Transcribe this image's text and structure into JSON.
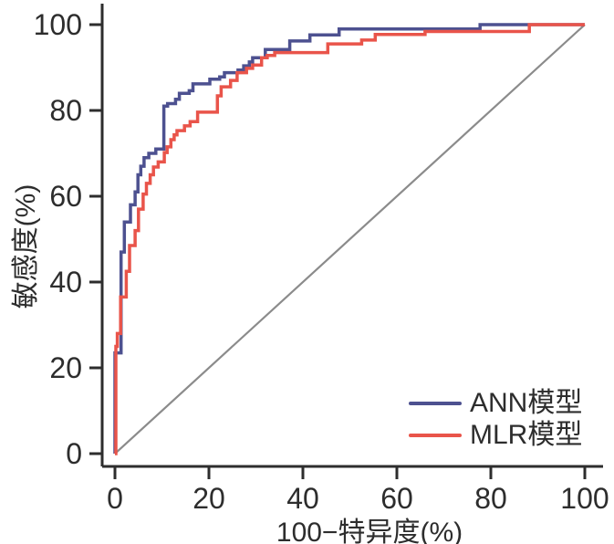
{
  "chart_data": {
    "type": "line",
    "subtype": "roc-step-curves",
    "title": "",
    "xlabel": "100−特异度(%)",
    "ylabel": "敏感度(%)",
    "xlim": [
      0,
      100
    ],
    "ylim": [
      0,
      100
    ],
    "x_ticks": [
      0,
      20,
      40,
      60,
      80,
      100
    ],
    "y_ticks": [
      0,
      20,
      40,
      60,
      80,
      100
    ],
    "grid": false,
    "legend_position": "bottom-right",
    "axis_color": "#2d2d2d",
    "series": [
      {
        "name": "ANN模型",
        "color": "#4d5190",
        "line_width": 3.5,
        "style": "step",
        "in_legend": true,
        "points": [
          [
            0,
            0
          ],
          [
            0,
            23.5
          ],
          [
            1.3,
            23.5
          ],
          [
            1.3,
            47
          ],
          [
            2,
            47
          ],
          [
            2,
            54
          ],
          [
            3.3,
            54
          ],
          [
            3.3,
            58
          ],
          [
            4.3,
            58
          ],
          [
            4.3,
            61
          ],
          [
            4.9,
            61
          ],
          [
            4.9,
            65
          ],
          [
            5.5,
            65
          ],
          [
            5.5,
            67
          ],
          [
            6.2,
            67
          ],
          [
            6.2,
            69
          ],
          [
            7.2,
            69
          ],
          [
            7.2,
            70
          ],
          [
            8.7,
            70
          ],
          [
            8.7,
            71
          ],
          [
            10.4,
            71
          ],
          [
            10.4,
            81
          ],
          [
            11.2,
            81
          ],
          [
            11.2,
            81.6
          ],
          [
            12.9,
            81.6
          ],
          [
            12.9,
            82.6
          ],
          [
            13.7,
            82.6
          ],
          [
            13.7,
            84
          ],
          [
            15.8,
            84
          ],
          [
            15.8,
            84.6
          ],
          [
            16.6,
            84.6
          ],
          [
            16.6,
            86.2
          ],
          [
            20.2,
            86.2
          ],
          [
            20.2,
            87.3
          ],
          [
            22.3,
            87.3
          ],
          [
            22.3,
            87.8
          ],
          [
            23.3,
            87.8
          ],
          [
            23.3,
            88.8
          ],
          [
            26.2,
            88.8
          ],
          [
            26.2,
            89.4
          ],
          [
            27.4,
            89.4
          ],
          [
            27.4,
            90.4
          ],
          [
            28.6,
            90.4
          ],
          [
            28.6,
            91.3
          ],
          [
            29.3,
            91.3
          ],
          [
            29.3,
            92.3
          ],
          [
            32,
            92.3
          ],
          [
            32,
            94.2
          ],
          [
            37.2,
            94.2
          ],
          [
            37.2,
            96.2
          ],
          [
            41.5,
            96.2
          ],
          [
            41.5,
            97.6
          ],
          [
            47.7,
            97.6
          ],
          [
            47.7,
            99
          ],
          [
            77.7,
            99
          ],
          [
            77.7,
            100
          ],
          [
            100,
            100
          ]
        ]
      },
      {
        "name": "MLR模型",
        "color": "#e9544a",
        "line_width": 3.5,
        "style": "step",
        "in_legend": true,
        "points": [
          [
            0,
            0
          ],
          [
            0.2,
            0
          ],
          [
            0.2,
            25
          ],
          [
            0.5,
            25
          ],
          [
            0.5,
            28
          ],
          [
            1.2,
            28
          ],
          [
            1.2,
            36.5
          ],
          [
            2.4,
            36.5
          ],
          [
            2.4,
            42.5
          ],
          [
            3.1,
            42.5
          ],
          [
            3.1,
            48.5
          ],
          [
            4.3,
            48.5
          ],
          [
            4.3,
            52
          ],
          [
            5,
            52
          ],
          [
            5,
            57
          ],
          [
            6,
            57
          ],
          [
            6,
            60.5
          ],
          [
            6.7,
            60.5
          ],
          [
            6.7,
            63
          ],
          [
            7.5,
            63
          ],
          [
            7.5,
            65
          ],
          [
            8.2,
            65
          ],
          [
            8.2,
            66.8
          ],
          [
            9.2,
            66.8
          ],
          [
            9.2,
            68
          ],
          [
            10.5,
            68
          ],
          [
            10.5,
            70.2
          ],
          [
            11.1,
            70.2
          ],
          [
            11.1,
            71.5
          ],
          [
            11.9,
            71.5
          ],
          [
            11.9,
            73.2
          ],
          [
            12.6,
            73.2
          ],
          [
            12.6,
            74.3
          ],
          [
            13.2,
            74.3
          ],
          [
            13.2,
            75.3
          ],
          [
            14.8,
            75.3
          ],
          [
            14.8,
            76.4
          ],
          [
            16,
            76.4
          ],
          [
            16,
            77.4
          ],
          [
            17.6,
            77.4
          ],
          [
            17.6,
            79.6
          ],
          [
            21.8,
            79.6
          ],
          [
            21.8,
            83.4
          ],
          [
            22.6,
            83.4
          ],
          [
            22.6,
            85.5
          ],
          [
            24.6,
            85.5
          ],
          [
            24.6,
            87
          ],
          [
            26,
            87
          ],
          [
            26,
            88.8
          ],
          [
            28,
            88.8
          ],
          [
            28,
            89.8
          ],
          [
            29.3,
            89.8
          ],
          [
            29.3,
            90.6
          ],
          [
            31.2,
            90.6
          ],
          [
            31.2,
            92.3
          ],
          [
            32.4,
            92.3
          ],
          [
            32.4,
            92.8
          ],
          [
            34,
            92.8
          ],
          [
            34,
            93.5
          ],
          [
            45.3,
            93.5
          ],
          [
            45.3,
            95.5
          ],
          [
            52.5,
            95.5
          ],
          [
            52.5,
            96.4
          ],
          [
            55.4,
            96.4
          ],
          [
            55.4,
            97.7
          ],
          [
            66,
            97.7
          ],
          [
            66,
            98.4
          ],
          [
            88.2,
            98.4
          ],
          [
            88.2,
            100
          ],
          [
            100,
            100
          ]
        ]
      },
      {
        "name": "chance-diagonal",
        "color": "#8b8b8b",
        "line_width": 2.2,
        "style": "straight",
        "in_legend": false,
        "points": [
          [
            0,
            0
          ],
          [
            100,
            100
          ]
        ]
      }
    ]
  }
}
